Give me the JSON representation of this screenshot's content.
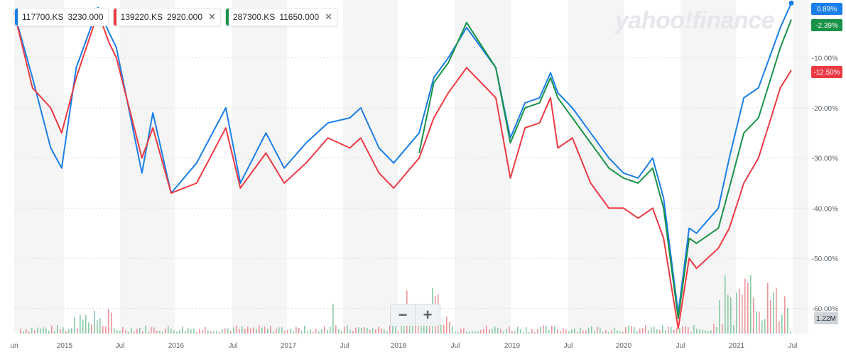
{
  "watermark": "yahoo!finance",
  "legend": [
    {
      "ticker": "117700.KS",
      "price": "3230.000",
      "color": "#1a7ee8",
      "closable": false
    },
    {
      "ticker": "139220.KS",
      "price": "2920.000",
      "color": "#ec3a43",
      "closable": true
    },
    {
      "ticker": "287300.KS",
      "price": "11650.000",
      "color": "#199248",
      "closable": true
    }
  ],
  "zoom": {
    "minus": "−",
    "plus": "+"
  },
  "chart_data": {
    "type": "line",
    "x_axis_labels": [
      "un",
      "2015",
      "Jul",
      "2016",
      "Jul",
      "2017",
      "Jul",
      "2018",
      "Jul",
      "2019",
      "Jul",
      "2020",
      "Jul",
      "2021",
      "Jul"
    ],
    "y_ticks": [
      "-10.00%",
      "-20.00%",
      "-30.00%",
      "-40.00%",
      "-50.00%",
      "-60.00%"
    ],
    "ylim": [
      -65,
      1.5
    ],
    "volume_label": "1.22M",
    "end_badges": [
      {
        "series": "117700.KS",
        "text": "0.89%",
        "color": "#1a7ee8"
      },
      {
        "series": "287300.KS",
        "text": "-2.39%",
        "color": "#199248"
      },
      {
        "series": "139220.KS",
        "text": "-12.50%",
        "color": "#ec3a43"
      }
    ],
    "grid": "alternating vertical bands, horizontal dotted lines",
    "series": [
      {
        "name": "117700.KS",
        "color": "#1a7ee8",
        "points": [
          [
            0.0,
            -1
          ],
          [
            0.025,
            -14
          ],
          [
            0.05,
            -28
          ],
          [
            0.065,
            -32
          ],
          [
            0.085,
            -12
          ],
          [
            0.115,
            0
          ],
          [
            0.13,
            -5
          ],
          [
            0.14,
            -8
          ],
          [
            0.175,
            -33
          ],
          [
            0.19,
            -21
          ],
          [
            0.215,
            -37
          ],
          [
            0.25,
            -31
          ],
          [
            0.29,
            -20
          ],
          [
            0.31,
            -35
          ],
          [
            0.345,
            -25
          ],
          [
            0.37,
            -32
          ],
          [
            0.4,
            -27
          ],
          [
            0.43,
            -23
          ],
          [
            0.46,
            -22
          ],
          [
            0.475,
            -20
          ],
          [
            0.5,
            -28
          ],
          [
            0.52,
            -31
          ],
          [
            0.555,
            -25
          ],
          [
            0.575,
            -14
          ],
          [
            0.595,
            -10
          ],
          [
            0.62,
            -4
          ],
          [
            0.66,
            -12
          ],
          [
            0.68,
            -26
          ],
          [
            0.7,
            -19
          ],
          [
            0.72,
            -18
          ],
          [
            0.735,
            -13
          ],
          [
            0.745,
            -17
          ],
          [
            0.765,
            -20
          ],
          [
            0.79,
            -25
          ],
          [
            0.815,
            -30
          ],
          [
            0.835,
            -33
          ],
          [
            0.855,
            -34
          ],
          [
            0.875,
            -30
          ],
          [
            0.89,
            -38
          ],
          [
            0.91,
            -61
          ],
          [
            0.925,
            -44
          ],
          [
            0.935,
            -45
          ],
          [
            0.965,
            -40
          ],
          [
            0.98,
            -30
          ],
          [
            1.0,
            -18
          ],
          [
            1.02,
            -16
          ],
          [
            1.05,
            -4
          ],
          [
            1.065,
            0.89
          ]
        ]
      },
      {
        "name": "139220.KS",
        "color": "#ec3a43",
        "points": [
          [
            0.0,
            -1
          ],
          [
            0.025,
            -16
          ],
          [
            0.05,
            -20
          ],
          [
            0.065,
            -25
          ],
          [
            0.085,
            -14
          ],
          [
            0.115,
            -1
          ],
          [
            0.13,
            -7
          ],
          [
            0.14,
            -10
          ],
          [
            0.175,
            -30
          ],
          [
            0.19,
            -24
          ],
          [
            0.215,
            -37
          ],
          [
            0.25,
            -35
          ],
          [
            0.29,
            -24
          ],
          [
            0.31,
            -36
          ],
          [
            0.345,
            -29
          ],
          [
            0.37,
            -35
          ],
          [
            0.4,
            -31
          ],
          [
            0.43,
            -26
          ],
          [
            0.46,
            -28
          ],
          [
            0.475,
            -26
          ],
          [
            0.5,
            -33
          ],
          [
            0.52,
            -36
          ],
          [
            0.555,
            -30
          ],
          [
            0.575,
            -22
          ],
          [
            0.595,
            -17
          ],
          [
            0.62,
            -12
          ],
          [
            0.66,
            -18
          ],
          [
            0.68,
            -34
          ],
          [
            0.7,
            -24
          ],
          [
            0.72,
            -23
          ],
          [
            0.735,
            -18
          ],
          [
            0.745,
            -28
          ],
          [
            0.765,
            -26
          ],
          [
            0.79,
            -35
          ],
          [
            0.815,
            -40
          ],
          [
            0.835,
            -40
          ],
          [
            0.855,
            -42
          ],
          [
            0.875,
            -40
          ],
          [
            0.89,
            -46
          ],
          [
            0.91,
            -64
          ],
          [
            0.925,
            -50
          ],
          [
            0.935,
            -52
          ],
          [
            0.965,
            -48
          ],
          [
            0.98,
            -44
          ],
          [
            1.0,
            -35
          ],
          [
            1.02,
            -30
          ],
          [
            1.05,
            -16
          ],
          [
            1.065,
            -12.5
          ]
        ]
      },
      {
        "name": "287300.KS",
        "color": "#199248",
        "points": [
          [
            0.555,
            -29
          ],
          [
            0.575,
            -15
          ],
          [
            0.595,
            -11
          ],
          [
            0.62,
            -3
          ],
          [
            0.66,
            -12
          ],
          [
            0.68,
            -27
          ],
          [
            0.7,
            -20
          ],
          [
            0.72,
            -19
          ],
          [
            0.735,
            -14
          ],
          [
            0.745,
            -18
          ],
          [
            0.765,
            -22
          ],
          [
            0.79,
            -27
          ],
          [
            0.815,
            -32
          ],
          [
            0.835,
            -34
          ],
          [
            0.855,
            -35
          ],
          [
            0.875,
            -32
          ],
          [
            0.89,
            -40
          ],
          [
            0.91,
            -62
          ],
          [
            0.925,
            -46
          ],
          [
            0.935,
            -47
          ],
          [
            0.965,
            -44
          ],
          [
            0.98,
            -36
          ],
          [
            1.0,
            -25
          ],
          [
            1.02,
            -22
          ],
          [
            1.05,
            -8
          ],
          [
            1.065,
            -2.39
          ]
        ]
      }
    ]
  }
}
